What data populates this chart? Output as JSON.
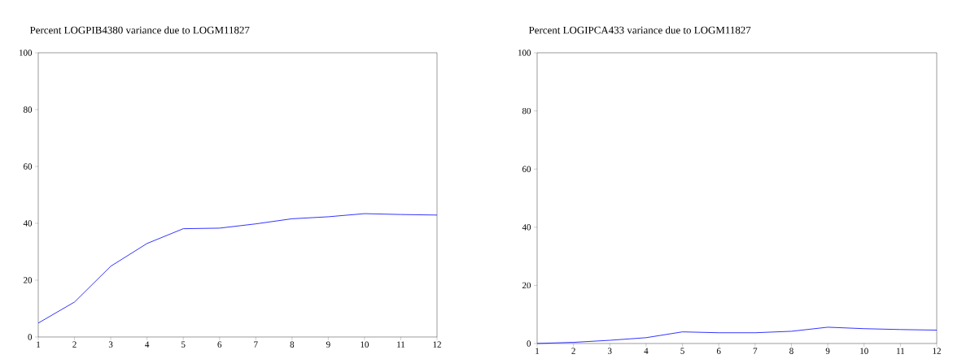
{
  "chart_data": [
    {
      "type": "line",
      "title": "Percent LOGPIB4380 variance due to LOGM11827",
      "x": [
        1,
        2,
        3,
        4,
        5,
        6,
        7,
        8,
        9,
        10,
        11,
        12
      ],
      "series": [
        {
          "color": "#0000ff",
          "values": [
            4.9,
            12.3,
            24.9,
            32.9,
            38.1,
            38.3,
            39.8,
            41.6,
            42.3,
            43.4,
            43.1,
            42.9
          ]
        }
      ],
      "xlim": [
        1,
        12
      ],
      "xticks": [
        1,
        2,
        3,
        4,
        5,
        6,
        7,
        8,
        9,
        10,
        11,
        12
      ],
      "ylim": [
        0,
        100
      ],
      "yticks": [
        0,
        20,
        40,
        60,
        80,
        100
      ],
      "grid": false
    },
    {
      "type": "line",
      "title": "Percent LOGIPCA433 variance due to LOGM11827",
      "x": [
        1,
        2,
        3,
        4,
        5,
        6,
        7,
        8,
        9,
        10,
        11,
        12
      ],
      "series": [
        {
          "color": "#0000ff",
          "values": [
            0,
            0.4,
            1.1,
            2.0,
            4.0,
            3.7,
            3.7,
            4.2,
            5.6,
            5.1,
            4.8,
            4.6
          ]
        }
      ],
      "xlim": [
        1,
        12
      ],
      "xticks": [
        1,
        2,
        3,
        4,
        5,
        6,
        7,
        8,
        9,
        10,
        11,
        12
      ],
      "ylim": [
        0,
        100
      ],
      "yticks": [
        0,
        20,
        40,
        60,
        80,
        100
      ],
      "grid": false
    }
  ]
}
